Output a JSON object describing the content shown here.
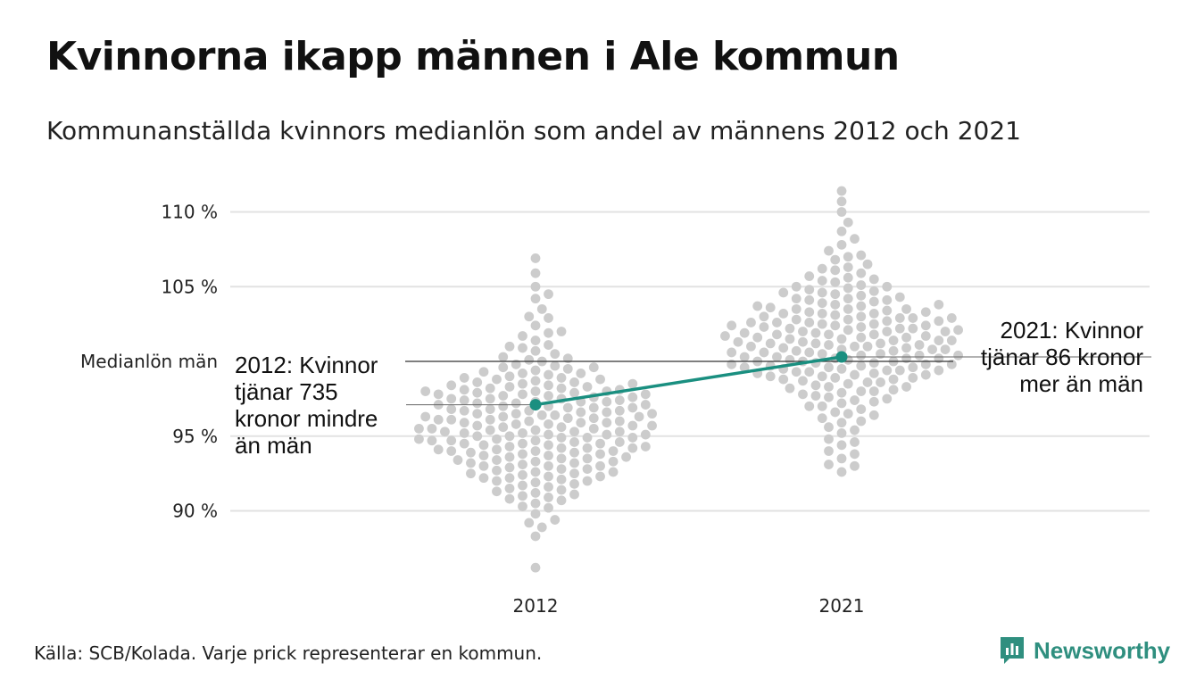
{
  "title": "Kvinnorna ikapp männen i Ale kommun",
  "subtitle": "Kommunanställda kvinnors medianlön som andel av männens 2012 och 2021",
  "footer": {
    "source": "Källa: SCB/Kolada. Varje prick representerar en kommun.",
    "brand": "Newsworthy"
  },
  "colors": {
    "dots": "#cccccc",
    "highlight": "#1a8f80",
    "gridline": "#e2e2e2",
    "reference_line": "#333333",
    "brand": "#2f8f7f"
  },
  "chart_data": {
    "type": "scatter",
    "subtype": "beeswarm",
    "categories": [
      "2012",
      "2021"
    ],
    "ylim": [
      86,
      111.5
    ],
    "yticks": [
      90,
      95,
      105,
      110
    ],
    "ytick_labels": [
      "90 %",
      "95 %",
      "105 %",
      "110 %"
    ],
    "grid": true,
    "reference_line": {
      "value": 100,
      "label": "Medianlön män"
    },
    "highlight": {
      "name": "Ale",
      "values": [
        {
          "x": "2012",
          "y": 97.1
        },
        {
          "x": "2021",
          "y": 100.3
        }
      ]
    },
    "annotations": [
      {
        "x": "2012",
        "lines": [
          "2012: Kvinnor",
          "tjänar 735",
          "kronor mindre",
          "än män"
        ]
      },
      {
        "x": "2021",
        "lines": [
          "2021: Kvinnor",
          "tjänar 86 kronor",
          "mer än män"
        ]
      }
    ],
    "series": [
      {
        "x": "2012",
        "values": [
          88.3,
          89.2,
          89.8,
          90.2,
          90.5,
          90.7,
          90.8,
          90.9,
          91.1,
          91.3,
          91.4,
          91.5,
          91.6,
          91.7,
          91.8,
          91.9,
          92.0,
          92.1,
          92.2,
          92.2,
          92.3,
          92.4,
          92.5,
          92.5,
          92.6,
          92.7,
          92.8,
          92.8,
          92.9,
          93.0,
          93.0,
          93.1,
          93.2,
          93.2,
          93.3,
          93.3,
          93.4,
          93.5,
          93.5,
          93.6,
          93.6,
          93.7,
          93.8,
          93.8,
          93.9,
          93.9,
          94.0,
          94.0,
          94.1,
          94.1,
          94.2,
          94.2,
          94.3,
          94.3,
          94.4,
          94.4,
          94.5,
          94.5,
          94.6,
          94.6,
          94.7,
          94.7,
          94.8,
          94.8,
          94.9,
          94.9,
          95.0,
          95.0,
          95.1,
          95.1,
          95.2,
          95.2,
          95.3,
          95.3,
          95.4,
          95.4,
          95.5,
          95.5,
          95.6,
          95.6,
          95.7,
          95.7,
          95.8,
          95.8,
          95.9,
          95.9,
          96.0,
          96.0,
          96.1,
          96.1,
          96.2,
          96.2,
          96.3,
          96.3,
          96.4,
          96.4,
          96.5,
          96.5,
          96.6,
          96.6,
          96.7,
          96.7,
          96.8,
          96.8,
          96.9,
          96.9,
          97.0,
          97.0,
          97.1,
          97.2,
          97.2,
          97.3,
          97.3,
          97.4,
          97.4,
          97.5,
          97.5,
          97.6,
          97.6,
          97.7,
          97.7,
          97.8,
          97.8,
          97.9,
          97.9,
          98.0,
          98.0,
          98.1,
          98.1,
          98.2,
          98.3,
          98.3,
          98.4,
          98.4,
          98.5,
          98.6,
          98.6,
          98.7,
          98.8,
          98.9,
          98.9,
          99.0,
          99.1,
          99.2,
          99.3,
          99.4,
          99.5,
          99.6,
          99.7,
          99.8,
          100.0,
          100.1,
          100.3,
          100.5,
          100.7,
          100.9,
          101.1,
          101.4,
          101.7,
          102.0,
          102.4,
          102.9,
          103.5,
          104.2,
          105.0,
          105.9,
          106.9
        ],
        "extra_values": [
          86.2,
          88.9,
          89.4,
          90.3,
          91.0,
          91.2,
          92.0,
          92.3,
          92.6,
          93.0,
          93.4,
          93.7,
          94.0,
          94.2,
          94.5,
          94.7,
          94.9,
          95.1,
          95.3,
          95.5,
          95.7,
          95.9,
          96.1,
          96.3,
          96.5,
          96.7,
          96.9,
          97.1,
          97.3,
          97.5,
          97.8,
          98.0,
          98.2,
          98.5,
          98.8,
          99.2,
          99.6,
          100.2,
          101.0,
          101.9,
          103.0,
          104.5
        ]
      },
      {
        "x": "2021",
        "values": [
          92.6,
          93.1,
          93.5,
          94.0,
          94.4,
          94.8,
          95.2,
          95.6,
          95.9,
          96.2,
          96.4,
          96.6,
          96.8,
          97.0,
          97.2,
          97.3,
          97.5,
          97.6,
          97.8,
          97.9,
          98.0,
          98.1,
          98.2,
          98.3,
          98.4,
          98.5,
          98.6,
          98.7,
          98.8,
          98.9,
          98.9,
          99.0,
          99.1,
          99.1,
          99.2,
          99.3,
          99.3,
          99.4,
          99.4,
          99.5,
          99.5,
          99.6,
          99.6,
          99.7,
          99.7,
          99.8,
          99.8,
          99.9,
          99.9,
          100.0,
          100.0,
          100.1,
          100.1,
          100.2,
          100.2,
          100.3,
          100.3,
          100.4,
          100.4,
          100.5,
          100.5,
          100.6,
          100.6,
          100.7,
          100.7,
          100.8,
          100.8,
          100.9,
          100.9,
          101.0,
          101.0,
          101.1,
          101.1,
          101.2,
          101.2,
          101.3,
          101.3,
          101.4,
          101.4,
          101.5,
          101.5,
          101.6,
          101.6,
          101.7,
          101.7,
          101.8,
          101.8,
          101.9,
          101.9,
          102.0,
          102.0,
          102.1,
          102.1,
          102.2,
          102.2,
          102.3,
          102.3,
          102.4,
          102.4,
          102.5,
          102.5,
          102.6,
          102.6,
          102.7,
          102.7,
          102.8,
          102.8,
          102.9,
          102.9,
          103.0,
          103.0,
          103.1,
          103.2,
          103.2,
          103.3,
          103.3,
          103.4,
          103.5,
          103.5,
          103.6,
          103.7,
          103.7,
          103.8,
          103.9,
          104.0,
          104.1,
          104.1,
          104.2,
          104.3,
          104.4,
          104.5,
          104.6,
          104.7,
          104.8,
          104.9,
          105.0,
          105.1,
          105.3,
          105.4,
          105.6,
          105.7,
          105.9,
          106.1,
          106.3,
          106.5,
          106.8,
          107.1,
          107.4,
          107.8,
          108.2,
          108.7,
          109.3,
          110.0,
          110.7,
          111.4
        ],
        "extra_values": [
          93.0,
          93.8,
          94.6,
          95.4,
          96.0,
          96.5,
          97.0,
          97.4,
          97.7,
          98.0,
          98.3,
          98.6,
          98.8,
          99.0,
          99.2,
          99.4,
          99.6,
          99.8,
          100.0,
          100.2,
          100.4,
          100.6,
          100.8,
          101.0,
          101.2,
          101.4,
          101.6,
          101.8,
          102.0,
          102.2,
          102.4,
          102.6,
          102.9,
          103.2,
          103.5,
          103.8,
          104.2,
          104.6,
          105.0,
          105.5,
          106.2,
          107.0
        ]
      }
    ]
  }
}
